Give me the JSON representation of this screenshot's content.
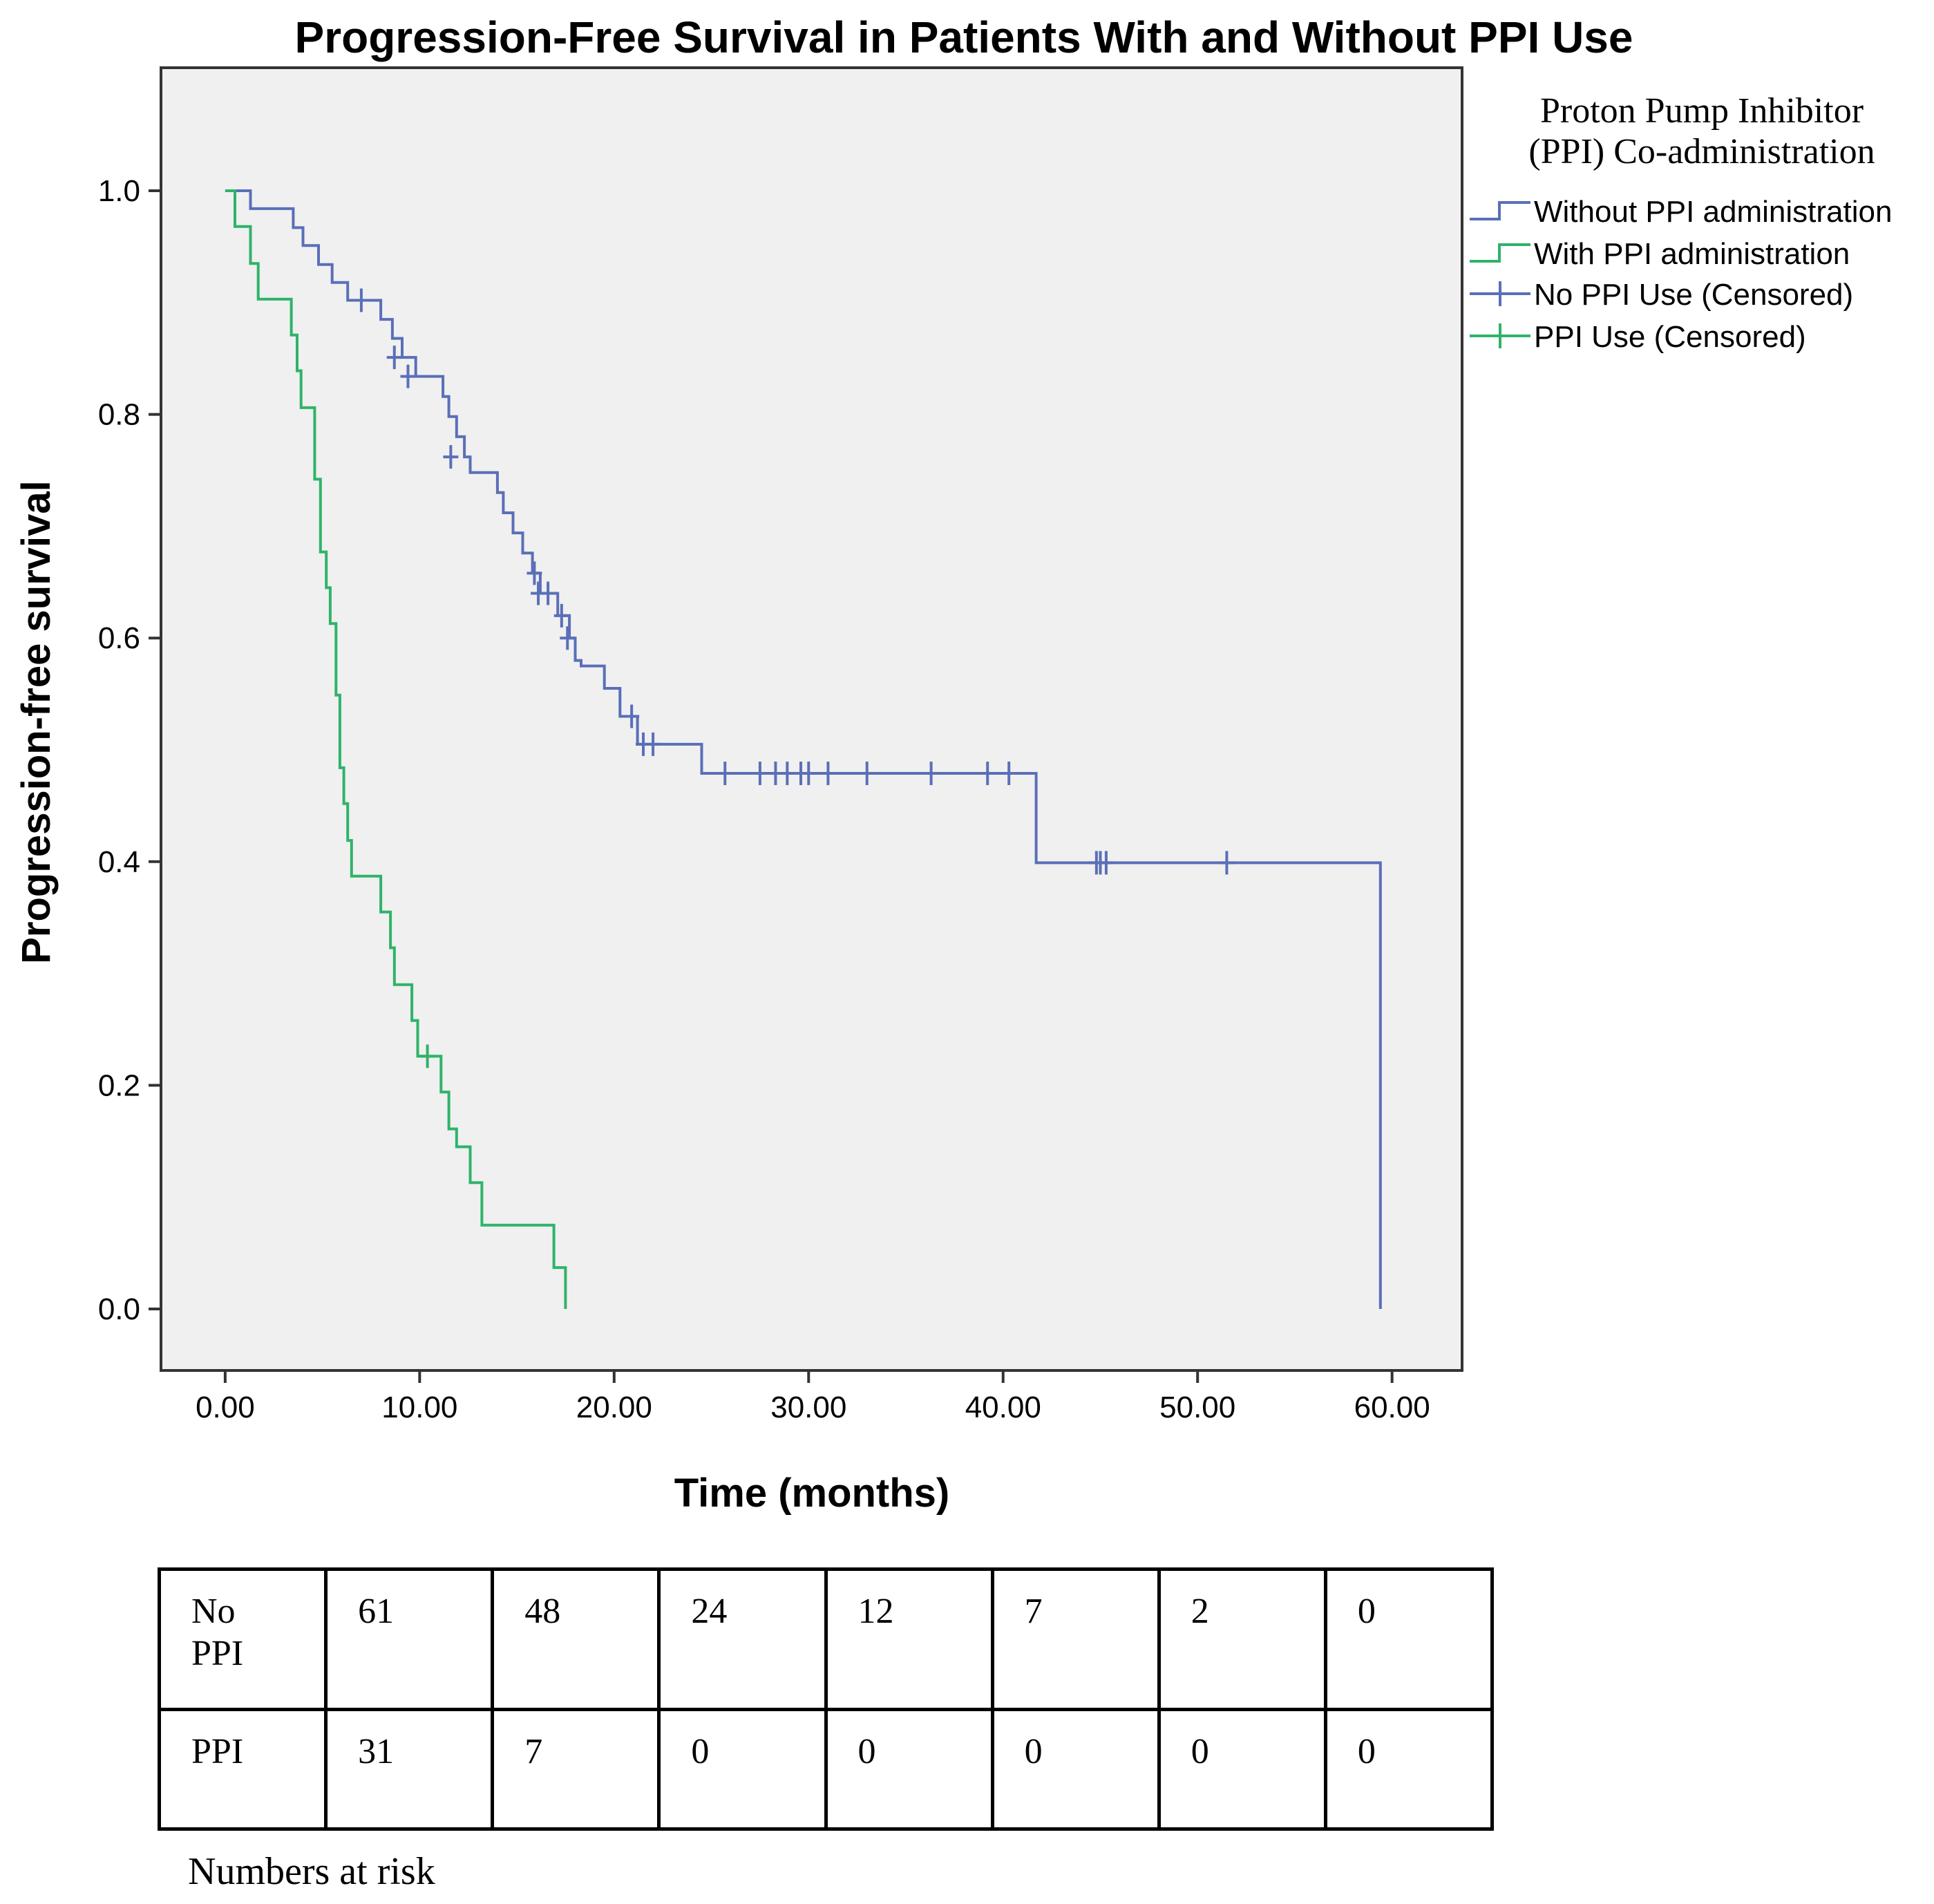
{
  "chart_data": {
    "type": "line",
    "subtype": "kaplan-meier step",
    "title": "Progression-Free Survival in Patients With and Without PPI Use",
    "xlabel": "Time (months)",
    "ylabel": "Progression-free survival",
    "xlim": [
      -3.3,
      63.6
    ],
    "ylim": [
      -0.055,
      1.11
    ],
    "xticks": [
      0,
      10,
      20,
      30,
      40,
      50,
      60
    ],
    "xtick_labels": [
      "0.00",
      "10.00",
      "20.00",
      "30.00",
      "40.00",
      "50.00",
      "60.00"
    ],
    "yticks": [
      0,
      0.2,
      0.4,
      0.6,
      0.8,
      1.0
    ],
    "ytick_labels": [
      "0.0",
      "0.2",
      "0.4",
      "0.6",
      "0.8",
      "1.0"
    ],
    "grid": false,
    "legend_placement": "right",
    "legend_title": [
      "Proton Pump Inhibitor",
      "(PPI) Co-administration"
    ],
    "legend": [
      {
        "label": "Without PPI administration",
        "color": "#5a6fb8",
        "marker": "step"
      },
      {
        "label": "With PPI administration",
        "color": "#2fb36a",
        "marker": "step"
      },
      {
        "label": "No PPI Use (Censored)",
        "color": "#5a6fb8",
        "marker": "cross"
      },
      {
        "label": "PPI Use (Censored)",
        "color": "#2fb36a",
        "marker": "cross"
      }
    ],
    "series": [
      {
        "name": "Without PPI administration",
        "color": "#5a6fb8",
        "steps": [
          [
            0,
            1.0
          ],
          [
            1.3,
            0.984
          ],
          [
            3.5,
            0.967
          ],
          [
            4.0,
            0.951
          ],
          [
            4.8,
            0.934
          ],
          [
            5.5,
            0.918
          ],
          [
            6.3,
            0.902
          ],
          [
            7.6,
            0.902
          ],
          [
            8.0,
            0.885
          ],
          [
            8.6,
            0.868
          ],
          [
            9.1,
            0.851
          ],
          [
            9.8,
            0.834
          ],
          [
            10.9,
            0.834
          ],
          [
            11.2,
            0.816
          ],
          [
            11.5,
            0.798
          ],
          [
            11.9,
            0.78
          ],
          [
            12.3,
            0.762
          ],
          [
            12.6,
            0.748
          ],
          [
            14.0,
            0.73
          ],
          [
            14.3,
            0.712
          ],
          [
            14.8,
            0.694
          ],
          [
            15.3,
            0.676
          ],
          [
            15.8,
            0.658
          ],
          [
            16.2,
            0.64
          ],
          [
            17.1,
            0.62
          ],
          [
            17.7,
            0.6
          ],
          [
            18.0,
            0.58
          ],
          [
            18.3,
            0.575
          ],
          [
            19.5,
            0.555
          ],
          [
            20.3,
            0.53
          ],
          [
            21.2,
            0.505
          ],
          [
            24.5,
            0.479
          ],
          [
            41.6,
            0.479
          ],
          [
            41.7,
            0.399
          ],
          [
            59.3,
            0.399
          ],
          [
            59.4,
            0.0
          ]
        ],
        "censored": [
          [
            7.0,
            0.902
          ],
          [
            8.7,
            0.851
          ],
          [
            9.4,
            0.834
          ],
          [
            11.6,
            0.762
          ],
          [
            15.9,
            0.658
          ],
          [
            16.1,
            0.64
          ],
          [
            16.6,
            0.64
          ],
          [
            17.3,
            0.62
          ],
          [
            17.6,
            0.6
          ],
          [
            20.9,
            0.53
          ],
          [
            21.5,
            0.505
          ],
          [
            22.0,
            0.505
          ],
          [
            25.7,
            0.479
          ],
          [
            27.5,
            0.479
          ],
          [
            28.3,
            0.479
          ],
          [
            28.9,
            0.479
          ],
          [
            29.6,
            0.479
          ],
          [
            30.0,
            0.479
          ],
          [
            31.0,
            0.479
          ],
          [
            33.0,
            0.479
          ],
          [
            36.3,
            0.479
          ],
          [
            39.2,
            0.479
          ],
          [
            40.3,
            0.479
          ],
          [
            44.8,
            0.399
          ],
          [
            45.0,
            0.399
          ],
          [
            45.3,
            0.399
          ],
          [
            51.5,
            0.399
          ]
        ]
      },
      {
        "name": "With PPI administration",
        "color": "#2fb36a",
        "steps": [
          [
            0,
            1.0
          ],
          [
            0.5,
            0.968
          ],
          [
            1.3,
            0.935
          ],
          [
            1.7,
            0.903
          ],
          [
            3.4,
            0.871
          ],
          [
            3.7,
            0.839
          ],
          [
            3.9,
            0.806
          ],
          [
            4.6,
            0.742
          ],
          [
            4.9,
            0.677
          ],
          [
            5.2,
            0.645
          ],
          [
            5.4,
            0.613
          ],
          [
            5.7,
            0.549
          ],
          [
            5.9,
            0.484
          ],
          [
            6.1,
            0.452
          ],
          [
            6.3,
            0.419
          ],
          [
            6.5,
            0.387
          ],
          [
            8.0,
            0.355
          ],
          [
            8.5,
            0.323
          ],
          [
            8.7,
            0.29
          ],
          [
            9.6,
            0.258
          ],
          [
            9.9,
            0.226
          ],
          [
            11.1,
            0.194
          ],
          [
            11.5,
            0.161
          ],
          [
            11.9,
            0.145
          ],
          [
            12.6,
            0.113
          ],
          [
            13.2,
            0.075
          ],
          [
            16.9,
            0.037
          ],
          [
            17.5,
            0.0
          ]
        ],
        "censored": [
          [
            10.4,
            0.226
          ]
        ]
      }
    ]
  },
  "risk_table": {
    "rows": [
      {
        "label": "No\nPPI",
        "values": [
          "61",
          "48",
          "24",
          "12",
          "7",
          "2",
          "0"
        ]
      },
      {
        "label": "PPI",
        "values": [
          "31",
          "7",
          "0",
          "0",
          "0",
          "0",
          "0"
        ]
      }
    ],
    "caption": "Numbers at risk"
  }
}
